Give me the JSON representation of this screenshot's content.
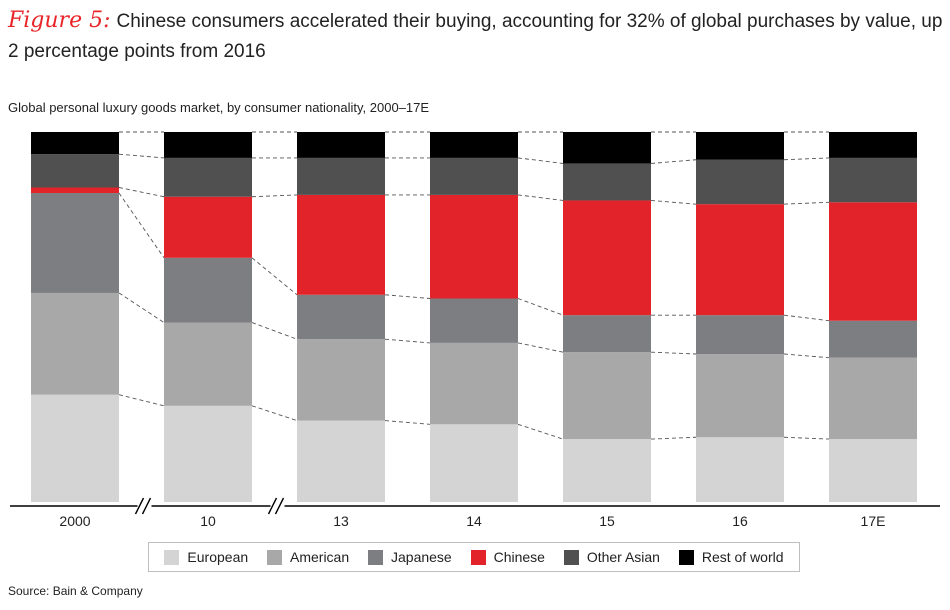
{
  "figure": {
    "label": "Figure 5:",
    "title": "Chinese consumers accelerated their buying, accounting for 32% of global purchases by value, up 2 percentage points from 2016"
  },
  "subtitle": "Global personal luxury goods market, by consumer nationality, 2000–17E",
  "source": "Source: Bain & Company",
  "colors": {
    "European": "#d4d4d4",
    "American": "#a8a8a8",
    "Japanese": "#7d7e81",
    "Chinese": "#e3232a",
    "Other Asian": "#505050",
    "Rest of world": "#000000"
  },
  "chart_data": {
    "type": "bar",
    "stacked": true,
    "normalized_to_100_percent": true,
    "title": "",
    "xlabel": "",
    "ylabel": "",
    "ylim": [
      0,
      100
    ],
    "axis_breaks_after": [
      "2000",
      "10"
    ],
    "categories": [
      "2000",
      "10",
      "13",
      "14",
      "15",
      "16",
      "17E"
    ],
    "series": [
      {
        "name": "European",
        "values": [
          29,
          26,
          22,
          21,
          17,
          17.5,
          17
        ]
      },
      {
        "name": "American",
        "values": [
          27.5,
          22.5,
          22,
          22,
          23.5,
          22.5,
          22
        ]
      },
      {
        "name": "Japanese",
        "values": [
          27,
          17.5,
          12,
          12,
          10,
          10.5,
          10
        ]
      },
      {
        "name": "Chinese",
        "values": [
          1.5,
          16.5,
          27,
          28,
          31,
          30,
          32
        ]
      },
      {
        "name": "Other Asian",
        "values": [
          9,
          10.5,
          10,
          10,
          10,
          12,
          12
        ]
      },
      {
        "name": "Rest of world",
        "values": [
          6,
          7,
          7,
          7,
          8.5,
          7.5,
          7
        ]
      }
    ]
  },
  "legend": {
    "items": [
      "European",
      "American",
      "Japanese",
      "Chinese",
      "Other Asian",
      "Rest of world"
    ]
  }
}
